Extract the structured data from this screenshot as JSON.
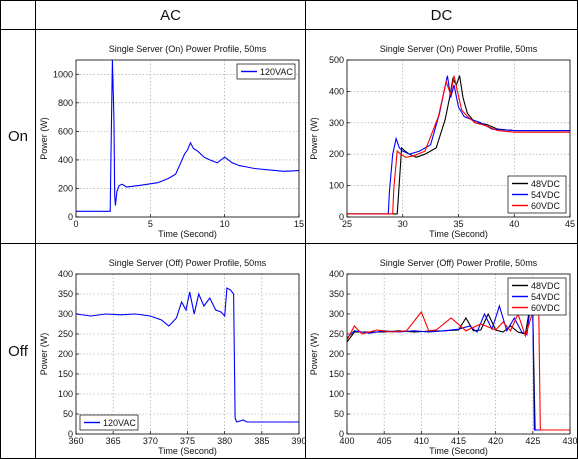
{
  "table": {
    "col_headers": [
      "AC",
      "DC"
    ],
    "row_headers": [
      "On",
      "Off"
    ]
  },
  "chart_data": [
    {
      "id": "ac-on",
      "type": "line",
      "title": "Single Server (On) Power Profile, 50ms",
      "xlabel": "Time (Second)",
      "ylabel": "Power (W)",
      "xlim": [
        0,
        15
      ],
      "ylim": [
        0,
        1100
      ],
      "xticks": [
        0,
        5,
        10,
        15
      ],
      "yticks": [
        0,
        200,
        400,
        600,
        800,
        1000
      ],
      "grid": true,
      "legend": "top-right",
      "series": [
        {
          "name": "120VAC",
          "color": "#0000ff",
          "x": [
            0,
            2.3,
            2.35,
            2.45,
            2.55,
            2.6,
            2.65,
            2.75,
            2.9,
            3.1,
            3.4,
            3.8,
            4.5,
            5.5,
            6.2,
            6.7,
            7.0,
            7.3,
            7.5,
            7.7,
            7.9,
            8.2,
            8.6,
            9.0,
            9.5,
            10.0,
            10.5,
            11.0,
            11.5,
            12.0,
            13.0,
            14.0,
            15.0
          ],
          "y": [
            40,
            40,
            400,
            1100,
            700,
            150,
            80,
            180,
            220,
            230,
            210,
            215,
            225,
            240,
            270,
            300,
            370,
            440,
            470,
            520,
            480,
            460,
            420,
            400,
            380,
            420,
            380,
            360,
            350,
            340,
            330,
            320,
            325
          ]
        }
      ]
    },
    {
      "id": "dc-on",
      "type": "line",
      "title": "Single Server (On) Power Profile, 50ms",
      "xlabel": "Time (Second)",
      "ylabel": "Power (W)",
      "xlim": [
        25,
        45
      ],
      "ylim": [
        0,
        500
      ],
      "xticks": [
        25,
        30,
        35,
        40,
        45
      ],
      "yticks": [
        0,
        100,
        200,
        300,
        400,
        500
      ],
      "grid": true,
      "legend": "bottom-right",
      "series": [
        {
          "name": "48VDC",
          "color": "#000000",
          "x": [
            25,
            29.5,
            29.6,
            29.9,
            30.2,
            30.6,
            31.2,
            32.0,
            33.0,
            33.8,
            34.2,
            34.5,
            34.8,
            35.1,
            35.4,
            35.8,
            36.5,
            37.5,
            38.5,
            40,
            42,
            45
          ],
          "y": [
            10,
            10,
            60,
            220,
            210,
            200,
            190,
            200,
            220,
            310,
            380,
            440,
            420,
            450,
            380,
            330,
            300,
            295,
            280,
            275,
            275,
            275
          ]
        },
        {
          "name": "54VDC",
          "color": "#0000ff",
          "x": [
            25,
            28.7,
            28.8,
            29.1,
            29.4,
            29.7,
            30.0,
            30.6,
            31.5,
            32.5,
            33.3,
            33.7,
            34.0,
            34.3,
            34.6,
            35.0,
            35.5,
            36.2,
            37.0,
            38.0,
            40,
            42,
            45
          ],
          "y": [
            10,
            10,
            80,
            200,
            250,
            220,
            210,
            200,
            210,
            230,
            330,
            400,
            450,
            380,
            420,
            350,
            320,
            310,
            300,
            280,
            275,
            275,
            275
          ]
        },
        {
          "name": "60VDC",
          "color": "#ff0000",
          "x": [
            25,
            29.1,
            29.2,
            29.5,
            29.8,
            30.3,
            31.0,
            32.0,
            33.2,
            33.9,
            34.3,
            34.6,
            34.9,
            35.3,
            35.8,
            36.5,
            37.5,
            38.5,
            40,
            42,
            45
          ],
          "y": [
            10,
            10,
            90,
            210,
            200,
            190,
            195,
            210,
            320,
            430,
            390,
            450,
            400,
            340,
            320,
            300,
            290,
            275,
            270,
            270,
            270
          ]
        }
      ]
    },
    {
      "id": "ac-off",
      "type": "line",
      "title": "Single Server (Off) Power Profile, 50ms",
      "xlabel": "Time (Second)",
      "ylabel": "Power (W)",
      "xlim": [
        360,
        390
      ],
      "ylim": [
        0,
        400
      ],
      "xticks": [
        360,
        365,
        370,
        375,
        380,
        385,
        390
      ],
      "yticks": [
        0,
        50,
        100,
        150,
        200,
        250,
        300,
        350,
        400
      ],
      "grid": true,
      "legend": "bottom-left",
      "series": [
        {
          "name": "120VAC",
          "color": "#0000ff",
          "x": [
            360,
            362,
            364,
            366,
            368,
            370,
            371.5,
            372.5,
            373.5,
            374.2,
            374.8,
            375.3,
            375.9,
            376.5,
            377.2,
            378,
            378.8,
            379.5,
            380.0,
            380.3,
            380.8,
            381.2,
            381.4,
            381.6,
            382.5,
            383,
            384,
            386,
            388,
            390
          ],
          "y": [
            300,
            295,
            300,
            298,
            300,
            295,
            285,
            270,
            290,
            330,
            310,
            355,
            300,
            350,
            320,
            340,
            310,
            305,
            295,
            365,
            360,
            350,
            40,
            30,
            35,
            30,
            30,
            30,
            30,
            30
          ]
        }
      ]
    },
    {
      "id": "dc-off",
      "type": "line",
      "title": "Single Server (Off) Power Profile, 50ms",
      "xlabel": "Time (Second)",
      "ylabel": "Power (W)",
      "xlim": [
        400,
        430
      ],
      "ylim": [
        0,
        400
      ],
      "xticks": [
        400,
        405,
        410,
        415,
        420,
        425,
        430
      ],
      "yticks": [
        0,
        50,
        100,
        150,
        200,
        250,
        300,
        350,
        400
      ],
      "grid": true,
      "legend": "top-right",
      "series": [
        {
          "name": "48VDC",
          "color": "#000000",
          "x": [
            400,
            401,
            403,
            405,
            407,
            409,
            411,
            413,
            415,
            416,
            417,
            418,
            419,
            420,
            421,
            422,
            423,
            424,
            424.5,
            425,
            425.3,
            425.6,
            426,
            430
          ],
          "y": [
            230,
            255,
            255,
            255,
            258,
            255,
            257,
            258,
            260,
            290,
            258,
            260,
            300,
            260,
            255,
            270,
            255,
            250,
            305,
            300,
            10,
            10,
            10,
            10
          ]
        },
        {
          "name": "54VDC",
          "color": "#0000ff",
          "x": [
            400,
            401,
            403,
            405,
            407,
            409,
            411,
            413,
            415,
            416.5,
            417.5,
            418.5,
            419.5,
            420.5,
            421.5,
            422.5,
            423.5,
            424.2,
            424.6,
            425.0,
            425.2,
            425.5,
            430
          ],
          "y": [
            240,
            258,
            252,
            258,
            255,
            258,
            255,
            258,
            262,
            270,
            255,
            300,
            262,
            320,
            258,
            290,
            255,
            248,
            310,
            305,
            10,
            10,
            10
          ]
        },
        {
          "name": "60VDC",
          "color": "#ff0000",
          "x": [
            400,
            401,
            402,
            404,
            406,
            408,
            410,
            411,
            412,
            414,
            416,
            418,
            420,
            421,
            422,
            423,
            424,
            425,
            425.5,
            425.8,
            426.0,
            426.2,
            430
          ],
          "y": [
            235,
            270,
            250,
            260,
            255,
            258,
            305,
            258,
            260,
            290,
            258,
            275,
            260,
            280,
            258,
            300,
            245,
            305,
            300,
            300,
            10,
            10,
            10
          ]
        }
      ]
    }
  ]
}
